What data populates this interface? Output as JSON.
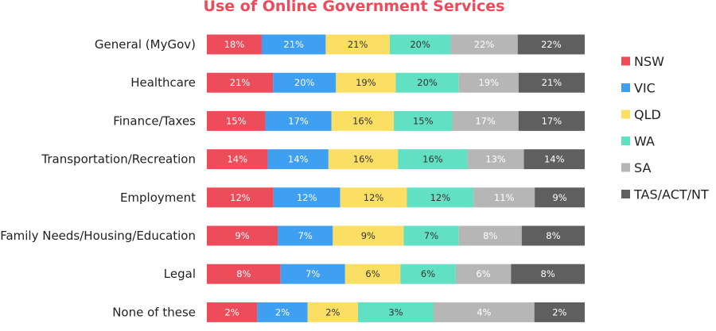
{
  "chart_data": {
    "type": "bar",
    "orientation": "horizontal",
    "stacked": "100%",
    "title": "Use of Online Government Services",
    "categories": [
      "General (MyGov)",
      "Healthcare",
      "Finance/Taxes",
      "Transportation/Recreation",
      "Employment",
      "Family Needs/Housing/Education",
      "Legal",
      "None of these"
    ],
    "series": [
      {
        "name": "NSW",
        "color": "#ed4d5a",
        "values": [
          18,
          21,
          15,
          14,
          12,
          9,
          8,
          2
        ]
      },
      {
        "name": "VIC",
        "color": "#3f9ff0",
        "values": [
          21,
          20,
          17,
          14,
          12,
          7,
          7,
          2
        ]
      },
      {
        "name": "QLD",
        "color": "#fbdf65",
        "values": [
          21,
          19,
          16,
          16,
          12,
          9,
          6,
          2
        ]
      },
      {
        "name": "WA",
        "color": "#62e0c3",
        "values": [
          20,
          20,
          15,
          16,
          12,
          7,
          6,
          3
        ]
      },
      {
        "name": "SA",
        "color": "#b6b6b6",
        "values": [
          22,
          19,
          17,
          13,
          11,
          8,
          6,
          4
        ]
      },
      {
        "name": "TAS/ACT/NT",
        "color": "#5f5f5f",
        "values": [
          22,
          21,
          17,
          14,
          9,
          8,
          8,
          2
        ]
      }
    ],
    "value_suffix": "%",
    "legend_position": "right",
    "grid": false
  }
}
